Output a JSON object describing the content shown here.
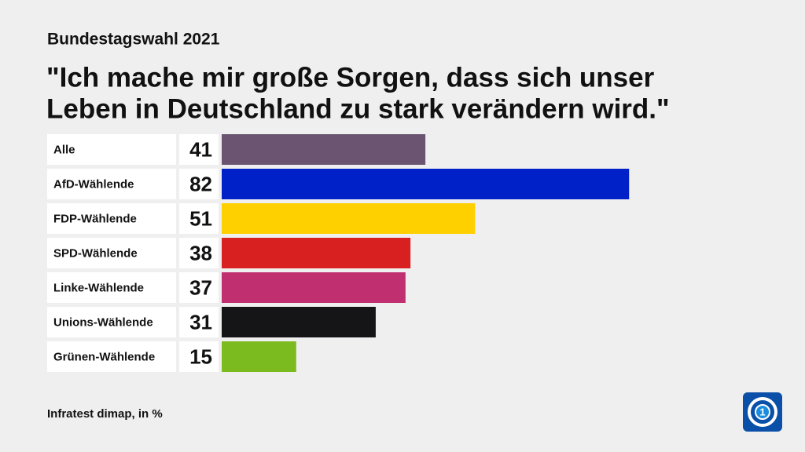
{
  "chart_data": {
    "type": "bar",
    "subtitle": "Bundestagswahl 2021",
    "title": [
      "\"Ich mache mir große Sorgen, dass sich unser",
      "Leben in Deutschland zu stark verändern wird.\""
    ],
    "categories": [
      "Alle",
      "AfD-Wählende",
      "FDP-Wählende",
      "SPD-Wählende",
      "Linke-Wählende",
      "Unions-Wählende",
      "Grünen-Wählende"
    ],
    "values": [
      41,
      82,
      51,
      38,
      37,
      31,
      15
    ],
    "colors": [
      "#6a5471",
      "#0021c8",
      "#ffd000",
      "#d82020",
      "#c03070",
      "#151518",
      "#7bbb20"
    ],
    "source": "Infratest dimap, in %"
  }
}
